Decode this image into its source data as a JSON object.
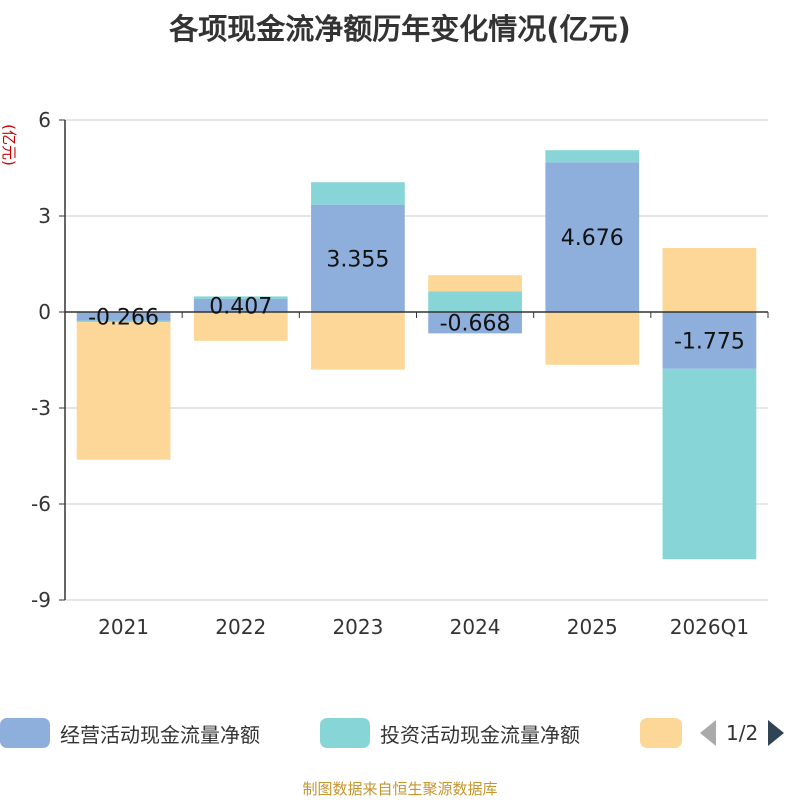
{
  "chart_data": {
    "type": "bar",
    "stacked": true,
    "title": "各项现金流净额历年变化情况(亿元)",
    "ylabel": "(亿元)",
    "xlabel": "",
    "categories": [
      "2021",
      "2022",
      "2023",
      "2024",
      "2025",
      "2026Q1"
    ],
    "ylim": [
      -9,
      6
    ],
    "yticks": [
      6,
      3,
      0,
      -3,
      -6,
      -9
    ],
    "series": [
      {
        "name": "经营活动现金流量净额",
        "color": "#8eaedb",
        "values": [
          -0.266,
          0.407,
          3.355,
          -0.668,
          4.676,
          -1.775
        ],
        "data_labels": [
          "-0.266",
          "0.407",
          "3.355",
          "-0.668",
          "4.676",
          "-1.775"
        ]
      },
      {
        "name": "投资活动现金流量净额",
        "color": "#88d5d8",
        "values": [
          -0.05,
          0.08,
          0.7,
          0.65,
          0.38,
          -5.95
        ]
      },
      {
        "name": "",
        "color": "#fdd797",
        "values": [
          -4.3,
          -0.9,
          -1.8,
          0.5,
          -1.65,
          2.0
        ]
      }
    ],
    "legend_position": "bottom"
  },
  "legend": {
    "page": "1/2"
  },
  "source": "制图数据来自恒生聚源数据库"
}
